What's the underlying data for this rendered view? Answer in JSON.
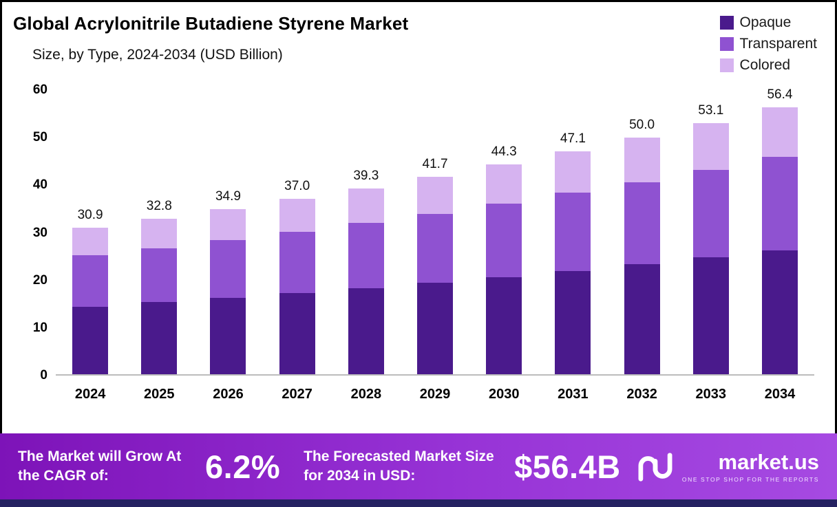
{
  "header": {
    "title": "Global Acrylonitrile Butadiene Styrene Market",
    "subtitle": "Size, by Type, 2024-2034 (USD Billion)"
  },
  "legend": [
    {
      "label": "Opaque",
      "color": "#4a1a8c"
    },
    {
      "label": "Transparent",
      "color": "#8f52d1"
    },
    {
      "label": "Colored",
      "color": "#d6b3f0"
    }
  ],
  "chart_data": {
    "type": "bar",
    "stacked": true,
    "title": "Global Acrylonitrile Butadiene Styrene Market Size, by Type, 2024-2034 (USD Billion)",
    "categories": [
      "2024",
      "2025",
      "2026",
      "2027",
      "2028",
      "2029",
      "2030",
      "2031",
      "2032",
      "2033",
      "2034"
    ],
    "series": [
      {
        "name": "Opaque",
        "color": "#4a1a8c",
        "values": [
          14.3,
          15.2,
          16.1,
          17.2,
          18.2,
          19.3,
          20.5,
          21.8,
          23.2,
          24.7,
          26.2
        ]
      },
      {
        "name": "Transparent",
        "color": "#8f52d1",
        "values": [
          10.8,
          11.4,
          12.3,
          12.9,
          13.7,
          14.6,
          15.5,
          16.5,
          17.4,
          18.5,
          19.7
        ]
      },
      {
        "name": "Colored",
        "color": "#d6b3f0",
        "values": [
          5.8,
          6.2,
          6.5,
          6.9,
          7.4,
          7.8,
          8.3,
          8.8,
          9.4,
          9.9,
          10.5
        ]
      }
    ],
    "totals": [
      "30.9",
      "32.8",
      "34.9",
      "37.0",
      "39.3",
      "41.7",
      "44.3",
      "47.1",
      "50.0",
      "53.1",
      "56.4"
    ],
    "xlabel": "",
    "ylabel": "",
    "ylim": [
      0,
      60
    ],
    "yticks": [
      0,
      10,
      20,
      30,
      40,
      50,
      60
    ],
    "grid": false,
    "legend_position": "top-right"
  },
  "banner": {
    "cagr_label": "The Market will Grow At the CAGR of:",
    "cagr_value": "6.2%",
    "forecast_label": "The Forecasted Market Size for 2034 in USD:",
    "forecast_value": "$56.4B",
    "brand": "market.us",
    "tagline": "ONE STOP SHOP FOR THE REPORTS"
  }
}
